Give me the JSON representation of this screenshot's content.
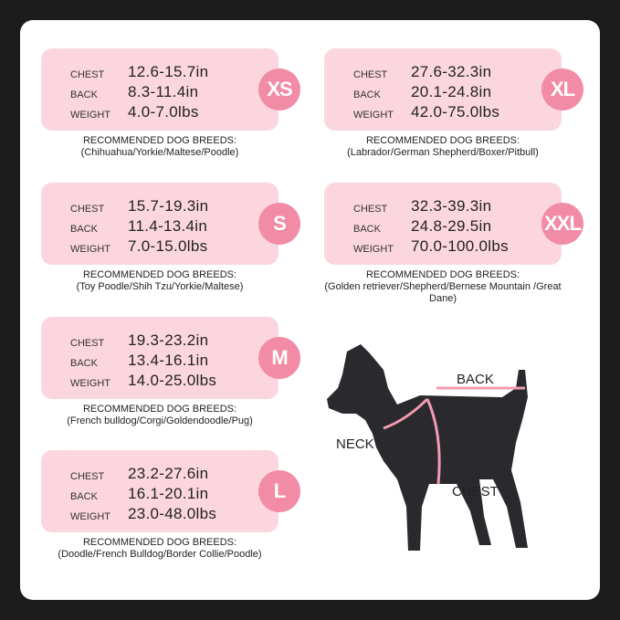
{
  "labels": {
    "chest": "CHEST",
    "back": "BACK",
    "weight": "WEIGHT",
    "recommended": "RECOMMENDED DOG BREEDS:"
  },
  "sizes": [
    {
      "name": "XS",
      "chest": "12.6-15.7in",
      "back": "8.3-11.4in",
      "weight": "4.0-7.0lbs",
      "breeds": "(Chihuahua/Yorkie/Maltese/Poodle)"
    },
    {
      "name": "S",
      "chest": "15.7-19.3in",
      "back": "11.4-13.4in",
      "weight": "7.0-15.0lbs",
      "breeds": "(Toy Poodle/Shih Tzu/Yorkie/Maltese)"
    },
    {
      "name": "M",
      "chest": "19.3-23.2in",
      "back": "13.4-16.1in",
      "weight": "14.0-25.0lbs",
      "breeds": "(French bulldog/Corgi/Goldendoodle/Pug)"
    },
    {
      "name": "L",
      "chest": "23.2-27.6in",
      "back": "16.1-20.1in",
      "weight": "23.0-48.0lbs",
      "breeds": "(Doodle/French Bulldog/Border Collie/Poodle)"
    },
    {
      "name": "XL",
      "chest": "27.6-32.3in",
      "back": "20.1-24.8in",
      "weight": "42.0-75.0lbs",
      "breeds": "(Labrador/German Shepherd/Boxer/Pitbull)"
    },
    {
      "name": "XXL",
      "chest": "32.3-39.3in",
      "back": "24.8-29.5in",
      "weight": "70.0-100.0lbs",
      "breeds": "(Golden retriever/Shepherd/Bernese Mountain /Great Dane)"
    }
  ],
  "diagram": {
    "back": "BACK",
    "neck": "NECK",
    "chest": "CHEST"
  },
  "colors": {
    "box": "#fcd6df",
    "circle": "#f28ba6",
    "dog": "#2a2a2e",
    "strap": "#f39ab0"
  }
}
